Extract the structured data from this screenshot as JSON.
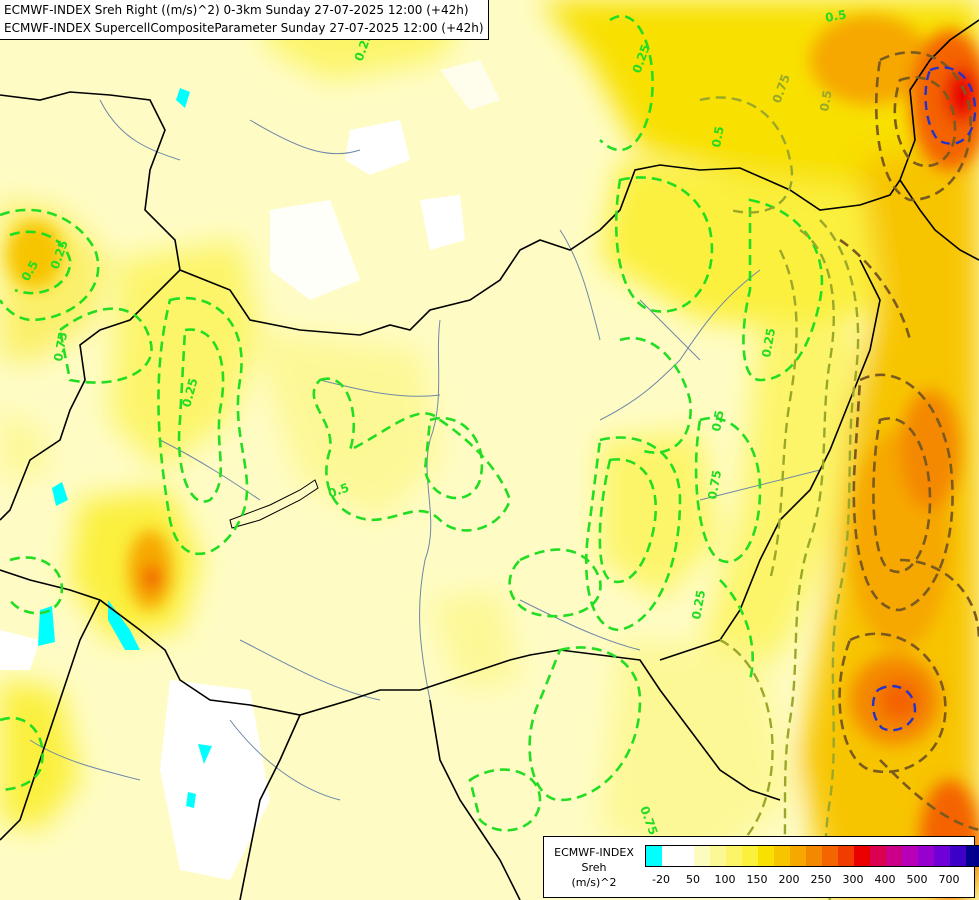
{
  "title": {
    "line1": "ECMWF-INDEX Sreh Right ((m/s)^2) 0-3km Sunday 27-07-2025 12:00 (+42h)",
    "line2": "ECMWF-INDEX SupercellCompositeParameter Sunday 27-07-2025 12:00 (+42h)"
  },
  "legend": {
    "line1": "ECMWF-INDEX",
    "line2": "Sreh",
    "line3": "(m/s)^2",
    "colors": [
      "#00ffff",
      "#ffffff",
      "#ffffff",
      "#fdfcc0",
      "#fdf896",
      "#fcf56a",
      "#fbf03c",
      "#f8e000",
      "#f7c400",
      "#f6a700",
      "#f48800",
      "#f46400",
      "#f03c00",
      "#ea0000",
      "#dc0050",
      "#cc0088",
      "#b800b8",
      "#9800d0",
      "#7000d8",
      "#3c00c8",
      "#00008c"
    ],
    "ticks": [
      {
        "label": "-20",
        "pos": 1
      },
      {
        "label": "50",
        "pos": 3
      },
      {
        "label": "100",
        "pos": 5
      },
      {
        "label": "150",
        "pos": 7
      },
      {
        "label": "200",
        "pos": 9
      },
      {
        "label": "250",
        "pos": 11
      },
      {
        "label": "300",
        "pos": 13
      },
      {
        "label": "400",
        "pos": 15
      },
      {
        "label": "500",
        "pos": 17
      },
      {
        "label": "700",
        "pos": 19
      }
    ]
  },
  "contour_labels": [
    "0.25",
    "0.5",
    "0.75",
    "0.25",
    "0.5",
    "0.25",
    "0.5",
    "0.25",
    "0.5",
    "0.75",
    "0.25",
    "0.75",
    "0.25",
    "0.5",
    "0.75",
    "0.5"
  ]
}
